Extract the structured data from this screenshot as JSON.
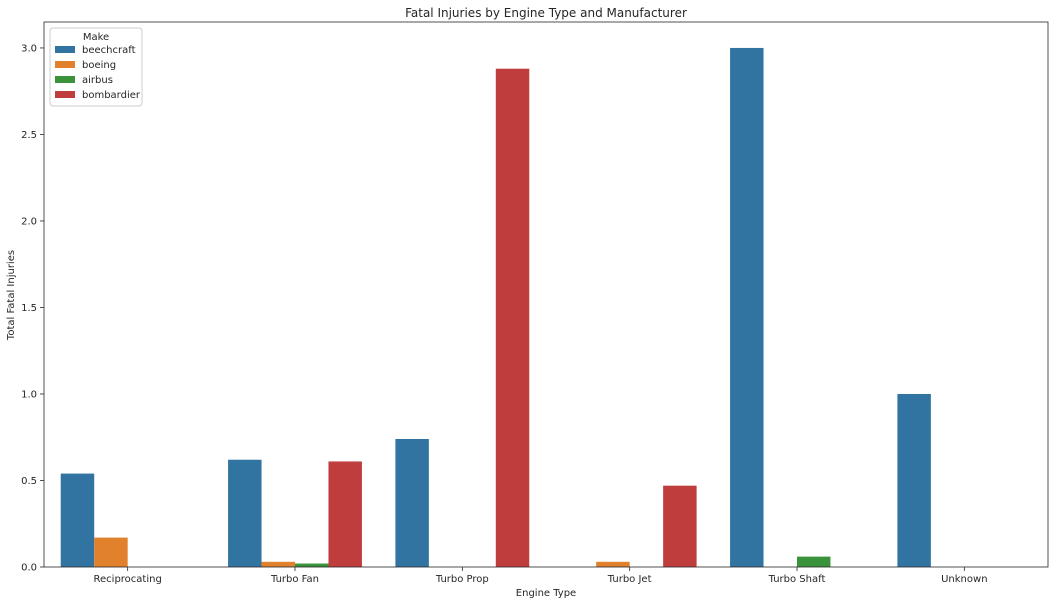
{
  "chart_data": {
    "type": "bar",
    "title": "Fatal Injuries by Engine Type and Manufacturer",
    "xlabel": "Engine Type",
    "ylabel": "Total Fatal Injuries",
    "categories": [
      "Reciprocating",
      "Turbo Fan",
      "Turbo Prop",
      "Turbo Jet",
      "Turbo Shaft",
      "Unknown"
    ],
    "ylim": [
      0,
      3.15
    ],
    "yticks": [
      "0.0",
      "0.5",
      "1.0",
      "1.5",
      "2.0",
      "2.5",
      "3.0"
    ],
    "legend": {
      "title": "Make",
      "placement": "top-left"
    },
    "grid": false,
    "series": [
      {
        "name": "beechcraft",
        "color": "#3274a1",
        "values": [
          0.54,
          0.62,
          0.74,
          null,
          3.0,
          1.0
        ]
      },
      {
        "name": "boeing",
        "color": "#e1812c",
        "values": [
          0.17,
          0.03,
          null,
          0.03,
          null,
          null
        ]
      },
      {
        "name": "airbus",
        "color": "#3a923a",
        "values": [
          null,
          0.02,
          null,
          null,
          0.06,
          null
        ]
      },
      {
        "name": "bombardier",
        "color": "#c03d3e",
        "values": [
          null,
          0.61,
          2.88,
          0.47,
          null,
          null
        ]
      }
    ]
  }
}
